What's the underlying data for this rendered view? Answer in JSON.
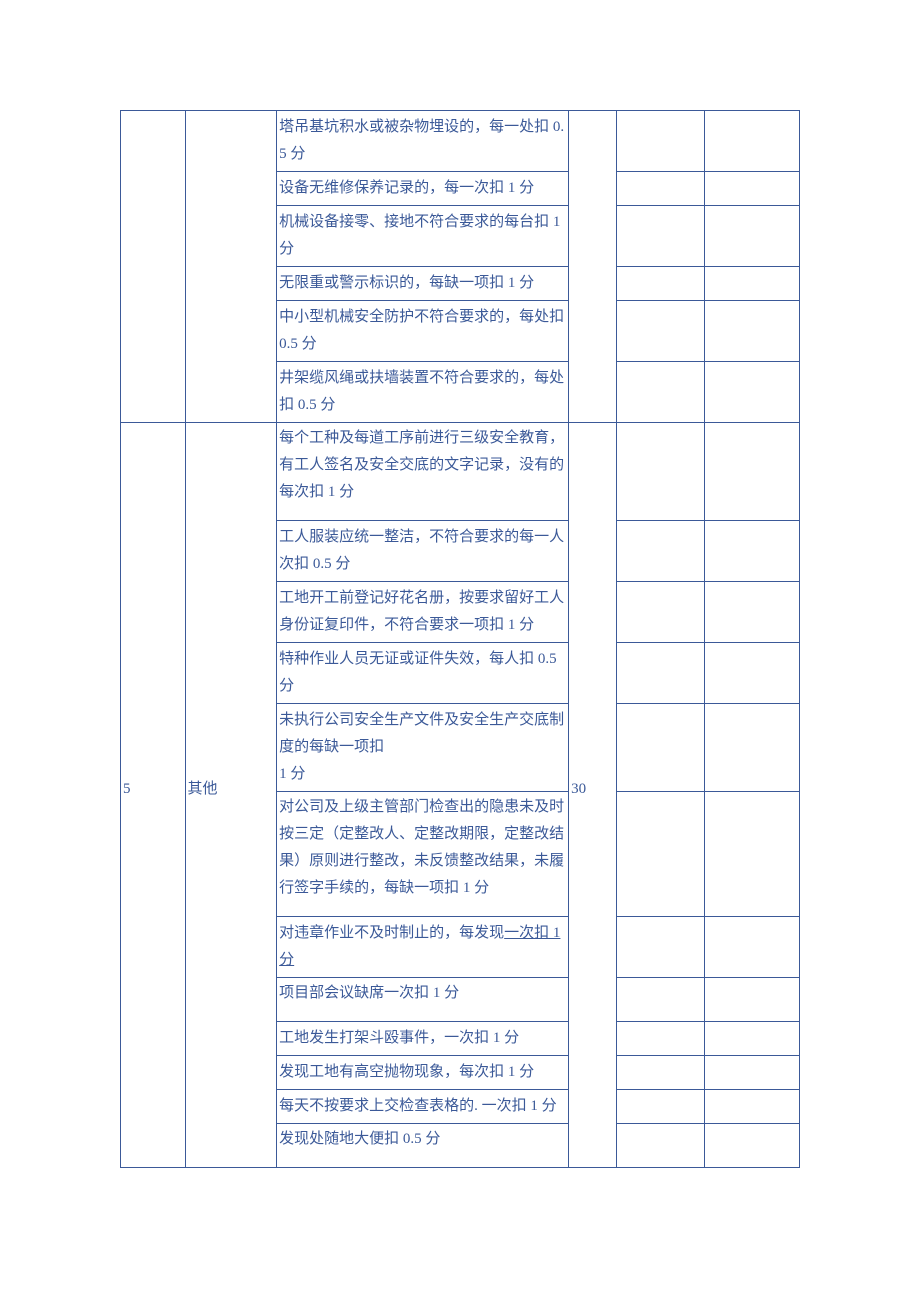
{
  "table": {
    "border_color": "#3b5998",
    "text_color": "#3b5998",
    "font_size": 15,
    "column_widths_pct": [
      9.5,
      13.5,
      43,
      7,
      13,
      14
    ],
    "section1": {
      "rows": [
        {
          "c3": "塔吊基坑积水或被杂物埋设的，每一处扣 0.5 分"
        },
        {
          "c3": "设备无维修保养记录的，每一次扣 1 分"
        },
        {
          "c3": "机械设备接零、接地不符合要求的每台扣 1 分"
        },
        {
          "c3": "无限重或警示标识的，每缺一项扣 1 分"
        },
        {
          "c3": "中小型机械安全防护不符合要求的，每处扣 0.5 分"
        },
        {
          "c3": "井架缆风绳或扶墙装置不符合要求的，每处扣 0.5 分"
        }
      ]
    },
    "section2": {
      "col1": "5",
      "col2": "其他",
      "col4": "30",
      "rows": [
        {
          "c3": "每个工种及每道工序前进行三级安全教育，有工人签名及安全交底的文字记录，没有的每次扣 1 分"
        },
        {
          "c3": "工人服装应统一整洁，不符合要求的每一人次扣 0.5 分"
        },
        {
          "c3": "工地开工前登记好花名册，按要求留好工人身份证复印件，不符合要求一项扣 1 分"
        },
        {
          "c3": "特种作业人员无证或证件失效，每人扣 0.5 分"
        },
        {
          "c3": "未执行公司安全生产文件及安全生产交底制度的每缺一项扣\n1 分"
        },
        {
          "c3": "对公司及上级主管部门检查出的隐患未及时按三定（定整改人、定整改期限，定整改结果）原则进行整改，未反馈整改结果，未履行签字手续的，每缺一项扣 1 分"
        },
        {
          "c3": "对违章作业不及时制止的，每发现",
          "underline": "一次扣 1 分"
        },
        {
          "c3": "项目部会议缺席一次扣 1 分"
        },
        {
          "c3": "工地发生打架斗殴事件，一次扣 1 分"
        },
        {
          "c3": "发现工地有高空抛物现象，每次扣 1 分"
        },
        {
          "c3": "每天不按要求上交检查表格的. 一次扣 1 分"
        },
        {
          "c3": "发现处随地大便扣 0.5 分"
        }
      ]
    }
  }
}
